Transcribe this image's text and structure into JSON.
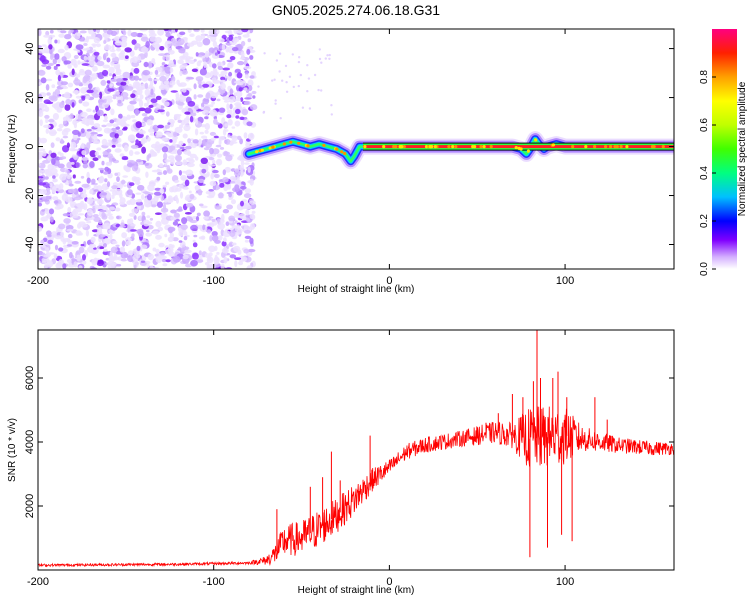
{
  "title": "GN05.2025.274.06.18.G31",
  "top_panel": {
    "chart_data": {
      "type": "heatmap",
      "title": "GN05.2025.274.06.18.G31",
      "xlabel": "Height of straight line (km)",
      "ylabel": "Frequency (Hz)",
      "xlim": [
        -200,
        162
      ],
      "ylim": [
        -50,
        48
      ],
      "x_ticks": [
        -200,
        -100,
        0,
        100
      ],
      "x_tick_labels": [
        "-200",
        "-100",
        "0",
        "100"
      ],
      "y_ticks": [
        -40,
        -20,
        0,
        20,
        40
      ],
      "y_tick_labels": [
        "-40",
        "-20",
        "0",
        "20",
        "40"
      ],
      "noise_region_x": [
        -200,
        -77
      ],
      "signal_ridge": {
        "x": [
          -80,
          -75,
          -70,
          -65,
          -60,
          -55,
          -50,
          -45,
          -40,
          -35,
          -30,
          -25,
          -22,
          -20,
          -17,
          -15,
          0,
          20,
          40,
          60,
          70,
          75,
          78,
          80,
          83,
          85,
          88,
          90,
          95,
          100,
          110,
          120,
          140,
          162
        ],
        "frequency": [
          -3,
          -2,
          -1,
          0,
          1,
          2,
          1,
          0,
          1,
          0,
          -1,
          -3,
          -6,
          -4,
          0,
          0,
          0,
          0,
          0,
          0,
          0,
          -1,
          -3,
          -1,
          3,
          1,
          -1,
          0,
          1,
          0,
          0,
          0,
          0,
          0
        ],
        "peak_amplitude_region_x": [
          -15,
          162
        ]
      }
    },
    "colorbar": {
      "label": "Normalized spectral amplitude",
      "range": [
        0,
        1
      ],
      "ticks": [
        0.0,
        0.2,
        0.4,
        0.6,
        0.8
      ],
      "tick_labels": [
        "0.0",
        "0.2",
        "0.4",
        "0.6",
        "0.8"
      ],
      "colormap": [
        "#ffffff",
        "#d4b0ff",
        "#8000ff",
        "#0000ff",
        "#00c0ff",
        "#00ff80",
        "#40ff00",
        "#c0ff00",
        "#ffff00",
        "#ffa000",
        "#ff2000",
        "#ff0080"
      ]
    }
  },
  "bottom_panel": {
    "chart_data": {
      "type": "line",
      "xlabel": "Height of straight line (km)",
      "ylabel": "SNR (10 * v/v)",
      "xlim": [
        -200,
        162
      ],
      "ylim": [
        0,
        7500
      ],
      "x_ticks": [
        -200,
        -100,
        0,
        100
      ],
      "x_tick_labels": [
        "-200",
        "-100",
        "0",
        "100"
      ],
      "y_ticks": [
        2000,
        4000,
        6000
      ],
      "y_tick_labels": [
        "2000",
        "4000",
        "6000"
      ],
      "series_color": "#ff0000",
      "envelope": {
        "x": [
          -200,
          -120,
          -80,
          -70,
          -65,
          -60,
          -50,
          -40,
          -30,
          -20,
          -10,
          0,
          10,
          20,
          30,
          40,
          50,
          60,
          70,
          80,
          90,
          100,
          110,
          120,
          130,
          140,
          150,
          162
        ],
        "snr": [
          150,
          180,
          220,
          300,
          500,
          900,
          1000,
          1300,
          1700,
          2200,
          2800,
          3200,
          3700,
          3900,
          4000,
          4100,
          4200,
          4300,
          4200,
          4100,
          4150,
          4200,
          4100,
          4000,
          3900,
          3850,
          3800,
          3800
        ]
      },
      "noise_amplitude": {
        "x": [
          -200,
          -80,
          -70,
          -60,
          -40,
          -20,
          0,
          40,
          70,
          80,
          90,
          100,
          110,
          130,
          162
        ],
        "snr": [
          40,
          40,
          150,
          500,
          600,
          500,
          250,
          250,
          400,
          1000,
          1000,
          900,
          400,
          250,
          200
        ]
      },
      "spikes": [
        {
          "x": -64,
          "snr": 1900
        },
        {
          "x": -45,
          "snr": 2600
        },
        {
          "x": -38,
          "snr": 2900
        },
        {
          "x": -33,
          "snr": 3700
        },
        {
          "x": -28,
          "snr": 2800
        },
        {
          "x": -11,
          "snr": 4200
        },
        {
          "x": 55,
          "snr": 4600
        },
        {
          "x": 62,
          "snr": 4900
        },
        {
          "x": 70,
          "snr": 5500
        },
        {
          "x": 76,
          "snr": 5400
        },
        {
          "x": 80,
          "snr": 400
        },
        {
          "x": 82,
          "snr": 5900
        },
        {
          "x": 84,
          "snr": 7500
        },
        {
          "x": 86,
          "snr": 6000
        },
        {
          "x": 90,
          "snr": 700
        },
        {
          "x": 93,
          "snr": 6000
        },
        {
          "x": 96,
          "snr": 6200
        },
        {
          "x": 98,
          "snr": 1100
        },
        {
          "x": 101,
          "snr": 5400
        },
        {
          "x": 104,
          "snr": 900
        },
        {
          "x": 117,
          "snr": 5400
        },
        {
          "x": 124,
          "snr": 4700
        }
      ]
    }
  }
}
